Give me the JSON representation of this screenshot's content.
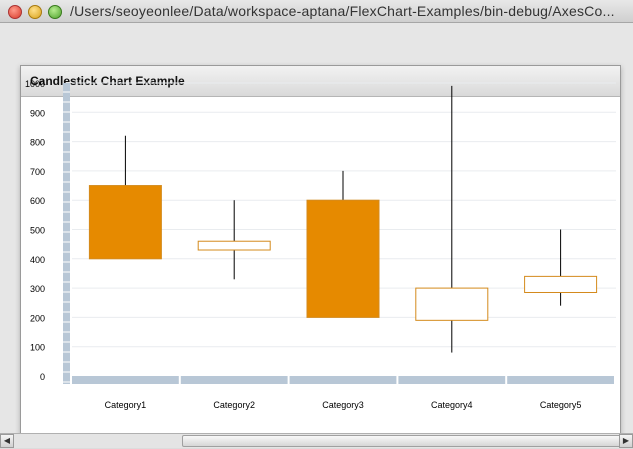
{
  "window": {
    "title": "/Users/seoyeonlee/Data/workspace-aptana/FlexChart-Examples/bin-debug/AxesCo..."
  },
  "panel": {
    "title": "Candlestick Chart Example"
  },
  "colors": {
    "rising_fill": "#e68a00",
    "falling_fill": "#ffffff",
    "border": "#d48a1c",
    "axis": "#b8c7d6",
    "grid": "#e9ecef"
  },
  "chart_data": {
    "type": "candlestick",
    "title": "",
    "xlabel": "",
    "ylabel": "",
    "ylim": [
      0,
      1000
    ],
    "yticks": [
      0,
      100,
      200,
      300,
      400,
      500,
      600,
      700,
      800,
      900,
      1000
    ],
    "categories": [
      "Category1",
      "Category2",
      "Category3",
      "Category4",
      "Category5"
    ],
    "open": [
      400,
      460,
      200,
      300,
      340
    ],
    "high": [
      820,
      600,
      700,
      990,
      500
    ],
    "low": [
      400,
      330,
      200,
      80,
      240
    ],
    "close": [
      650,
      430,
      600,
      190,
      285
    ],
    "grid": true
  }
}
